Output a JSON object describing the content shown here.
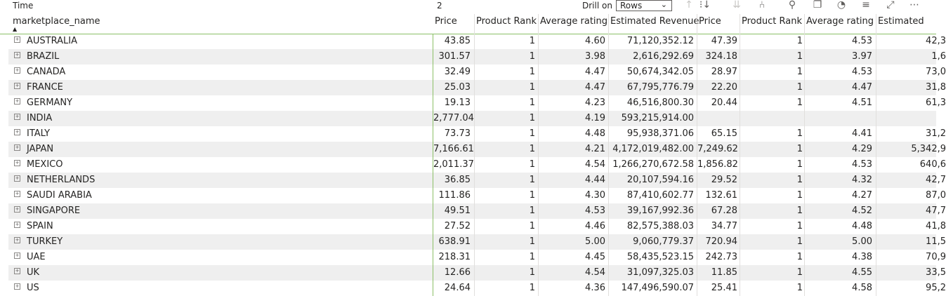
{
  "header": {
    "time_label": "Time",
    "time_value": "2",
    "drill_label": "Drill on",
    "drill_value": "Rows",
    "toolbar_icons": [
      "drill-up-icon",
      "drill-down-icon",
      "expand-all-down-icon",
      "expand-hierarchy-icon",
      "pin-icon",
      "copy-icon",
      "alert-icon",
      "filter-icon",
      "focus-mode-icon",
      "more-options-icon"
    ]
  },
  "columns": [
    "marketplace_name",
    "Price",
    "Product Rank",
    "Average rating",
    "Estimated Revenue",
    "Price",
    "Product Rank",
    "Average rating",
    "Estimated"
  ],
  "rows": [
    {
      "name": "AUSTRALIA",
      "v": [
        "43.85",
        "1",
        "4.60",
        "71,120,352.12",
        "47.39",
        "1",
        "4.53",
        "42,3"
      ]
    },
    {
      "name": "BRAZIL",
      "v": [
        "301.57",
        "1",
        "3.98",
        "2,616,292.69",
        "324.18",
        "1",
        "3.97",
        "1,6"
      ]
    },
    {
      "name": "CANADA",
      "v": [
        "32.49",
        "1",
        "4.47",
        "50,674,342.05",
        "28.97",
        "1",
        "4.53",
        "73,0"
      ]
    },
    {
      "name": "FRANCE",
      "v": [
        "25.03",
        "1",
        "4.47",
        "67,795,776.79",
        "22.20",
        "1",
        "4.47",
        "31,8"
      ]
    },
    {
      "name": "GERMANY",
      "v": [
        "19.13",
        "1",
        "4.23",
        "46,516,800.30",
        "20.44",
        "1",
        "4.51",
        "61,3"
      ]
    },
    {
      "name": "INDIA",
      "v": [
        "2,777.04",
        "1",
        "4.19",
        "593,215,914.00",
        "",
        "",
        "",
        ""
      ]
    },
    {
      "name": "ITALY",
      "v": [
        "73.73",
        "1",
        "4.48",
        "95,938,371.06",
        "65.15",
        "1",
        "4.41",
        "31,2"
      ]
    },
    {
      "name": "JAPAN",
      "v": [
        "7,166.61",
        "1",
        "4.21",
        "4,172,019,482.00",
        "7,249.62",
        "1",
        "4.29",
        "5,342,9"
      ]
    },
    {
      "name": "MEXICO",
      "v": [
        "2,011.37",
        "1",
        "4.54",
        "1,266,270,672.58",
        "1,856.82",
        "1",
        "4.53",
        "640,6"
      ]
    },
    {
      "name": "NETHERLANDS",
      "v": [
        "36.85",
        "1",
        "4.44",
        "20,107,594.16",
        "29.52",
        "1",
        "4.32",
        "42,7"
      ]
    },
    {
      "name": "SAUDI ARABIA",
      "v": [
        "111.86",
        "1",
        "4.30",
        "87,410,602.77",
        "132.61",
        "1",
        "4.27",
        "87,0"
      ]
    },
    {
      "name": "SINGAPORE",
      "v": [
        "49.51",
        "1",
        "4.53",
        "39,167,992.36",
        "67.28",
        "1",
        "4.52",
        "47,7"
      ]
    },
    {
      "name": "SPAIN",
      "v": [
        "27.52",
        "1",
        "4.46",
        "82,575,388.03",
        "34.77",
        "1",
        "4.48",
        "41,8"
      ]
    },
    {
      "name": "TURKEY",
      "v": [
        "638.91",
        "1",
        "5.00",
        "9,060,779.37",
        "720.94",
        "1",
        "5.00",
        "11,5"
      ]
    },
    {
      "name": "UAE",
      "v": [
        "218.31",
        "1",
        "4.45",
        "58,435,523.15",
        "242.73",
        "1",
        "4.38",
        "70,9"
      ]
    },
    {
      "name": "UK",
      "v": [
        "12.66",
        "1",
        "4.54",
        "31,097,325.03",
        "11.85",
        "1",
        "4.55",
        "33,5"
      ]
    },
    {
      "name": "US",
      "v": [
        "24.64",
        "1",
        "4.36",
        "147,496,590.07",
        "25.41",
        "1",
        "4.58",
        "95,2"
      ]
    }
  ],
  "expand_glyph": "⊞",
  "sort_glyph": "▲",
  "colors": {
    "accent_line": "#8bbf67",
    "alt_row": "#efefef",
    "text": "#252423"
  }
}
